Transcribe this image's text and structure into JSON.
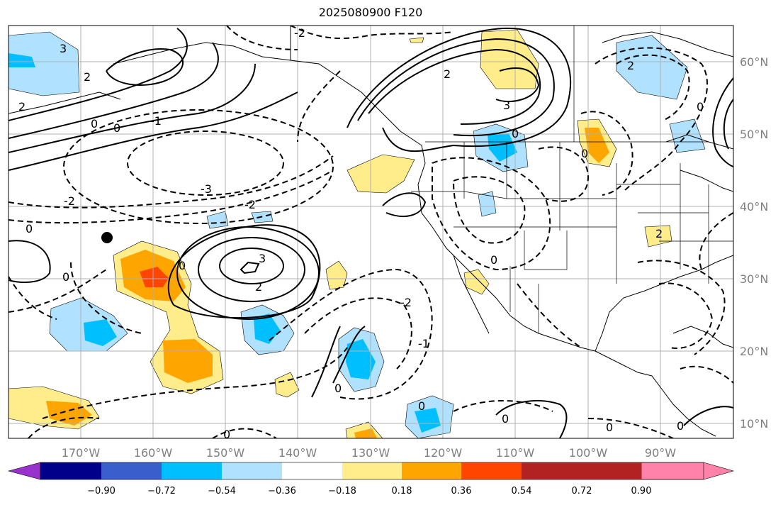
{
  "title": "2025080900 F120",
  "lon_labels": [
    "170°W",
    "160°W",
    "150°W",
    "140°W",
    "130°W",
    "120°W",
    "110°W",
    "100°W",
    "90°W"
  ],
  "lat_labels": [
    "60°N",
    "50°N",
    "40°N",
    "30°N",
    "20°N",
    "10°N"
  ],
  "colorbar": {
    "ticks": [
      "−0.90",
      "−0.72",
      "−0.54",
      "−0.36",
      "−0.18",
      "0.18",
      "0.36",
      "0.54",
      "0.72",
      "0.90"
    ],
    "colors": [
      "#9932cc",
      "#00008b",
      "#3a5fcd",
      "#00bfff",
      "#b0e2ff",
      "#ffffff",
      "#ffec8b",
      "#ffa500",
      "#ff4500",
      "#b22222",
      "#ff82ab"
    ]
  },
  "contour_labels": [
    "-3",
    "-2",
    "-1",
    "0",
    "1",
    "2",
    "3"
  ],
  "marker": "black-dot"
}
